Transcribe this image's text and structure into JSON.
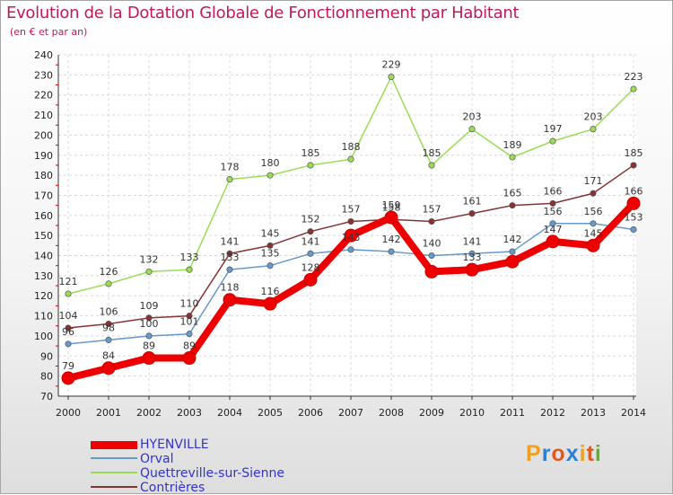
{
  "title": "Evolution de la Dotation Globale de Fonctionnement par Habitant",
  "subtitle": "(en € et par an)",
  "logo": {
    "text": "Proxiti",
    "letter_colors": [
      "#f0a020",
      "#2f7fd0",
      "#e05a20",
      "#2f7fd0",
      "#f0a020",
      "#e05a20",
      "#60b030"
    ]
  },
  "chart_data": {
    "type": "line",
    "title": "Evolution de la Dotation Globale de Fonctionnement par Habitant",
    "subtitle": "(en € et par an)",
    "x": [
      "2000",
      "2001",
      "2002",
      "2003",
      "2004",
      "2005",
      "2006",
      "2007",
      "2008",
      "2009",
      "2010",
      "2011",
      "2012",
      "2013",
      "2014"
    ],
    "ylim": [
      70,
      240
    ],
    "yticks": [
      70,
      80,
      90,
      100,
      110,
      120,
      130,
      140,
      150,
      160,
      170,
      180,
      190,
      200,
      210,
      220,
      230,
      240
    ],
    "grid": true,
    "legend_position": "bottom-left",
    "series": [
      {
        "name": "HYENVILLE",
        "color": "#ee0000",
        "values": [
          79,
          84,
          89,
          89,
          118,
          116,
          128,
          150,
          159,
          132,
          133,
          137,
          147,
          145,
          166
        ],
        "labels": [
          "79",
          "84",
          "89",
          "89",
          "118",
          "116",
          "128",
          "",
          "159",
          "",
          "133",
          "",
          "147",
          "145",
          "166"
        ]
      },
      {
        "name": "Orval",
        "color": "#6699cc",
        "values": [
          96,
          98,
          100,
          101,
          133,
          135,
          141,
          143,
          142,
          140,
          141,
          142,
          156,
          156,
          153
        ],
        "labels": [
          "96",
          "98",
          "100",
          "101",
          "133",
          "135",
          "141",
          "143",
          "142",
          "140",
          "141",
          "142",
          "156",
          "156",
          "153"
        ]
      },
      {
        "name": "Quettreville-sur-Sienne",
        "color": "#99dd55",
        "values": [
          121,
          126,
          132,
          133,
          178,
          180,
          185,
          188,
          229,
          185,
          203,
          189,
          197,
          203,
          223
        ],
        "labels": [
          "121",
          "126",
          "132",
          "133",
          "178",
          "180",
          "185",
          "188",
          "229",
          "185",
          "203",
          "189",
          "197",
          "203",
          "223"
        ]
      },
      {
        "name": "Contrières",
        "color": "#883333",
        "values": [
          104,
          106,
          109,
          110,
          141,
          145,
          152,
          157,
          158,
          157,
          161,
          165,
          166,
          171,
          185
        ],
        "labels": [
          "104",
          "106",
          "109",
          "110",
          "141",
          "145",
          "152",
          "157",
          "158",
          "157",
          "161",
          "165",
          "166",
          "171",
          "185"
        ]
      }
    ]
  }
}
